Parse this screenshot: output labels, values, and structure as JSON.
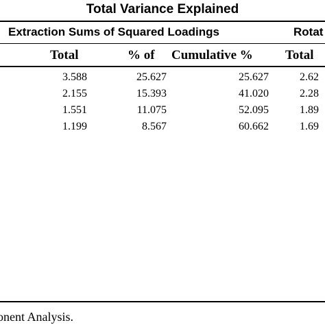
{
  "title": "Total Variance Explained",
  "groups": {
    "extraction": "Extraction Sums of Squared Loadings",
    "rotation": "Rotat"
  },
  "columns": {
    "total": "Total",
    "percent": "% of",
    "cumulative": "Cumulative %",
    "rot_total": "Total"
  },
  "rows": [
    {
      "total": "3.588",
      "percent": "25.627",
      "cumulative": "25.627",
      "rot_total": "2.62"
    },
    {
      "total": "2.155",
      "percent": "15.393",
      "cumulative": "41.020",
      "rot_total": "2.28"
    },
    {
      "total": "1.551",
      "percent": "11.075",
      "cumulative": "52.095",
      "rot_total": "1.89"
    },
    {
      "total": "1.199",
      "percent": "8.567",
      "cumulative": "60.662",
      "rot_total": "1.69"
    }
  ],
  "footnote": "onent Analysis."
}
